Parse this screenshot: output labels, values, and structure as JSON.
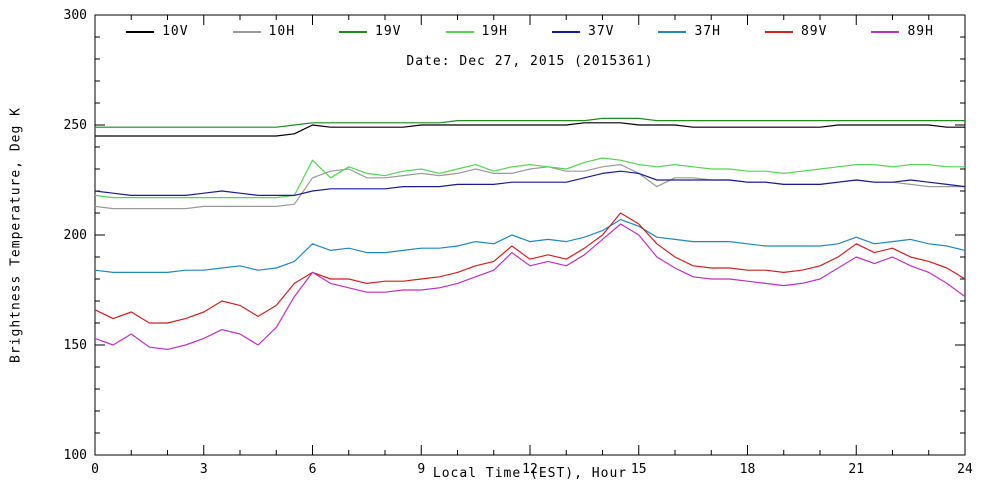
{
  "figure": {
    "date_label": "Date: Dec 27, 2015 (2015361)",
    "xlabel": "Local Time (EST), Hour",
    "ylabel": "Brightness Temperature, Deg K"
  },
  "chart_data": {
    "type": "line",
    "title": "Date: Dec 27, 2015 (2015361)",
    "xlabel": "Local Time (EST), Hour",
    "ylabel": "Brightness Temperature, Deg K",
    "xlim": [
      0,
      24
    ],
    "ylim": [
      100,
      300
    ],
    "x_major": 3,
    "x_minor": 1,
    "y_major": 50,
    "y_minor": 10,
    "x_tick_labels": [
      "0",
      "3",
      "6",
      "9",
      "12",
      "15",
      "18",
      "21",
      "24"
    ],
    "y_tick_labels": [
      "100",
      "150",
      "200",
      "250",
      "300"
    ],
    "grid": false,
    "legend_position": "top-inside",
    "frame_color": "#000000",
    "x": [
      0,
      0.5,
      1,
      1.5,
      2,
      2.5,
      3,
      3.5,
      4,
      4.5,
      5,
      5.5,
      6,
      6.5,
      7,
      7.5,
      8,
      8.5,
      9,
      9.5,
      10,
      10.5,
      11,
      11.5,
      12,
      12.5,
      13,
      13.5,
      14,
      14.5,
      15,
      15.5,
      16,
      16.5,
      17,
      17.5,
      18,
      18.5,
      19,
      19.5,
      20,
      20.5,
      21,
      21.5,
      22,
      22.5,
      23,
      23.5,
      24
    ],
    "series": [
      {
        "name": "10V",
        "color": "#000000",
        "values": [
          245,
          245,
          245,
          245,
          245,
          245,
          245,
          245,
          245,
          245,
          245,
          246,
          250,
          249,
          249,
          249,
          249,
          249,
          250,
          250,
          250,
          250,
          250,
          250,
          250,
          250,
          250,
          251,
          251,
          251,
          250,
          250,
          250,
          249,
          249,
          249,
          249,
          249,
          249,
          249,
          249,
          250,
          250,
          250,
          250,
          250,
          250,
          249,
          249
        ]
      },
      {
        "name": "10H",
        "color": "#9a9a9a",
        "values": [
          213,
          212,
          212,
          212,
          212,
          212,
          213,
          213,
          213,
          213,
          213,
          214,
          226,
          229,
          230,
          226,
          226,
          227,
          228,
          227,
          228,
          230,
          228,
          228,
          230,
          231,
          229,
          229,
          231,
          232,
          228,
          222,
          226,
          226,
          225,
          225,
          224,
          224,
          223,
          223,
          223,
          224,
          225,
          224,
          224,
          223,
          222,
          222,
          222
        ]
      },
      {
        "name": "19V",
        "color": "#1e8c1e",
        "values": [
          249,
          249,
          249,
          249,
          249,
          249,
          249,
          249,
          249,
          249,
          249,
          250,
          251,
          251,
          251,
          251,
          251,
          251,
          251,
          251,
          252,
          252,
          252,
          252,
          252,
          252,
          252,
          252,
          253,
          253,
          253,
          252,
          252,
          252,
          252,
          252,
          252,
          252,
          252,
          252,
          252,
          252,
          252,
          252,
          252,
          252,
          252,
          252,
          252
        ]
      },
      {
        "name": "19H",
        "color": "#55d455",
        "values": [
          218,
          217,
          217,
          217,
          217,
          217,
          217,
          217,
          217,
          217,
          217,
          218,
          234,
          226,
          231,
          228,
          227,
          229,
          230,
          228,
          230,
          232,
          229,
          231,
          232,
          231,
          230,
          233,
          235,
          234,
          232,
          231,
          232,
          231,
          230,
          230,
          229,
          229,
          228,
          229,
          230,
          231,
          232,
          232,
          231,
          232,
          232,
          231,
          231
        ]
      },
      {
        "name": "37V",
        "color": "#1a1a99",
        "values": [
          220,
          219,
          218,
          218,
          218,
          218,
          219,
          220,
          219,
          218,
          218,
          218,
          220,
          221,
          221,
          221,
          221,
          222,
          222,
          222,
          223,
          223,
          223,
          224,
          224,
          224,
          224,
          226,
          228,
          229,
          228,
          225,
          225,
          225,
          225,
          225,
          224,
          224,
          223,
          223,
          223,
          224,
          225,
          224,
          224,
          225,
          224,
          223,
          222
        ]
      },
      {
        "name": "37H",
        "color": "#2288bb",
        "values": [
          184,
          183,
          183,
          183,
          183,
          184,
          184,
          185,
          186,
          184,
          185,
          188,
          196,
          193,
          194,
          192,
          192,
          193,
          194,
          194,
          195,
          197,
          196,
          200,
          197,
          198,
          197,
          199,
          202,
          207,
          204,
          199,
          198,
          197,
          197,
          197,
          196,
          195,
          195,
          195,
          195,
          196,
          199,
          196,
          197,
          198,
          196,
          195,
          193
        ]
      },
      {
        "name": "89V",
        "color": "#cc2222",
        "values": [
          166,
          162,
          165,
          160,
          160,
          162,
          165,
          170,
          168,
          163,
          168,
          178,
          183,
          180,
          180,
          178,
          179,
          179,
          180,
          181,
          183,
          186,
          188,
          195,
          189,
          191,
          189,
          194,
          200,
          210,
          205,
          196,
          190,
          186,
          185,
          185,
          184,
          184,
          183,
          184,
          186,
          190,
          196,
          192,
          194,
          190,
          188,
          185,
          180
        ]
      },
      {
        "name": "89H",
        "color": "#bf30bf",
        "values": [
          153,
          150,
          155,
          149,
          148,
          150,
          153,
          157,
          155,
          150,
          158,
          172,
          183,
          178,
          176,
          174,
          174,
          175,
          175,
          176,
          178,
          181,
          184,
          192,
          186,
          188,
          186,
          191,
          198,
          205,
          200,
          190,
          185,
          181,
          180,
          180,
          179,
          178,
          177,
          178,
          180,
          185,
          190,
          187,
          190,
          186,
          183,
          178,
          172
        ]
      }
    ]
  }
}
